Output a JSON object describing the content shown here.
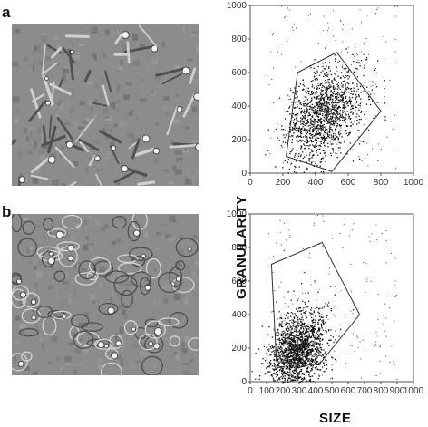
{
  "panels": [
    {
      "letter": "a"
    },
    {
      "letter": "b"
    }
  ],
  "axes": {
    "xlabel": "SIZE",
    "ylabel": "GRANULARITY"
  },
  "chart_data": [
    {
      "type": "scatter",
      "panel": "a",
      "xlim": [
        0,
        1000
      ],
      "ylim": [
        0,
        1000
      ],
      "xticks": [
        0,
        200,
        400,
        600,
        800,
        1000
      ],
      "yticks": [
        0,
        200,
        400,
        600,
        800,
        1000
      ],
      "gate_polygon": [
        [
          290,
          600
        ],
        [
          530,
          720
        ],
        [
          800,
          370
        ],
        [
          500,
          10
        ],
        [
          220,
          100
        ]
      ],
      "cluster": {
        "center": [
          450,
          350
        ],
        "spread": [
          120,
          130
        ],
        "n": 1400
      },
      "xlabel": "",
      "ylabel": ""
    },
    {
      "type": "scatter",
      "panel": "b",
      "xlim": [
        0,
        1000
      ],
      "ylim": [
        0,
        1000
      ],
      "xticks": [
        0,
        100,
        200,
        300,
        400,
        500,
        600,
        700,
        800,
        900,
        1000
      ],
      "yticks": [
        0,
        200,
        400,
        600,
        800,
        1000
      ],
      "gate_polygon": [
        [
          130,
          700
        ],
        [
          440,
          830
        ],
        [
          670,
          400
        ],
        [
          420,
          100
        ],
        [
          160,
          120
        ]
      ],
      "cluster": {
        "center": [
          290,
          190
        ],
        "spread": [
          90,
          110
        ],
        "n": 1700
      },
      "xlabel": "SIZE",
      "ylabel": "GRANULARITY"
    }
  ]
}
